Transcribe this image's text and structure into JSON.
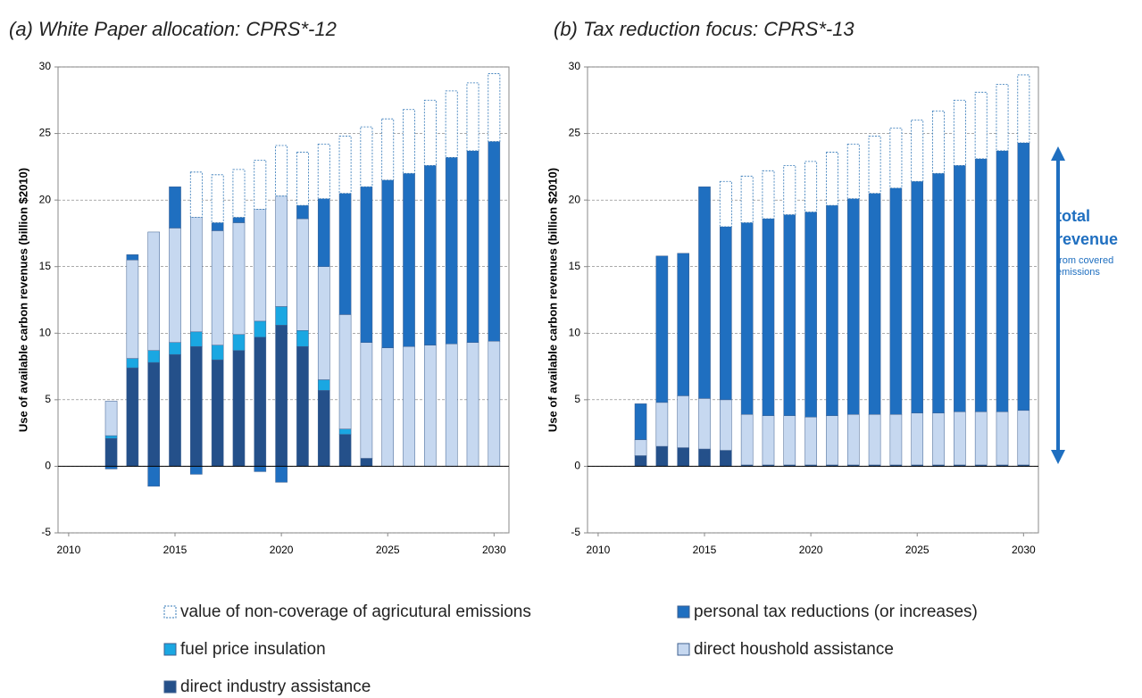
{
  "chart_data": [
    {
      "type": "bar",
      "stacked": true,
      "title": "(a)  White Paper allocation:  CPRS*-12",
      "y_label": "Use of available carbon revenues (billion $2010)",
      "x": [
        2012,
        2013,
        2014,
        2015,
        2016,
        2017,
        2018,
        2019,
        2020,
        2021,
        2022,
        2023,
        2024,
        2025,
        2026,
        2027,
        2028,
        2029,
        2030
      ],
      "xlim": [
        2009.5,
        2030.7
      ],
      "xticks": [
        2010,
        2015,
        2020,
        2025,
        2030
      ],
      "ylim": [
        -5,
        30
      ],
      "yticks": [
        -5,
        0,
        5,
        10,
        15,
        20,
        25,
        30
      ],
      "grid": true,
      "series": [
        {
          "name": "direct industry assistance",
          "color": "#24508a",
          "values": [
            2.1,
            7.4,
            7.8,
            8.4,
            9.0,
            8.0,
            8.7,
            9.7,
            10.6,
            9.0,
            5.7,
            2.4,
            0.6,
            0,
            0,
            0,
            0,
            0,
            0
          ]
        },
        {
          "name": "fuel price insulation",
          "color": "#1aa7e2",
          "values": [
            0.2,
            0.7,
            0.9,
            0.9,
            1.1,
            1.1,
            1.2,
            1.2,
            1.4,
            1.2,
            0.8,
            0.4,
            0,
            0,
            0,
            0,
            0,
            0,
            0
          ]
        },
        {
          "name": "direct houshold assistance",
          "color": "#c6d8f0",
          "values": [
            2.6,
            7.4,
            8.9,
            8.6,
            8.6,
            8.6,
            8.4,
            8.4,
            8.3,
            8.4,
            8.5,
            8.6,
            8.7,
            8.9,
            9.0,
            9.1,
            9.2,
            9.3,
            9.4
          ]
        },
        {
          "name": "personal tax reductions (or increases)",
          "color": "#1f6fc0",
          "values": [
            -0.2,
            0.4,
            -1.5,
            3.1,
            -0.6,
            0.6,
            0.4,
            -0.4,
            -1.2,
            1.0,
            5.1,
            9.1,
            11.7,
            12.6,
            13.0,
            13.5,
            14.0,
            14.4,
            15.0
          ]
        },
        {
          "name": "value of non-coverage of agricutural emissions",
          "color": "#2e75b6",
          "values": [
            0,
            0,
            0,
            0,
            3.4,
            3.6,
            3.6,
            3.7,
            3.8,
            4.0,
            4.1,
            4.3,
            4.5,
            4.6,
            4.8,
            4.9,
            5.0,
            5.1,
            5.1
          ]
        }
      ]
    },
    {
      "type": "bar",
      "stacked": true,
      "title": "(b)   Tax reduction focus:  CPRS*-13",
      "y_label": "Use of available carbon revenues (billion $2010)",
      "x": [
        2012,
        2013,
        2014,
        2015,
        2016,
        2017,
        2018,
        2019,
        2020,
        2021,
        2022,
        2023,
        2024,
        2025,
        2026,
        2027,
        2028,
        2029,
        2030
      ],
      "xlim": [
        2009.5,
        2030.7
      ],
      "xticks": [
        2010,
        2015,
        2020,
        2025,
        2030
      ],
      "ylim": [
        -5,
        30
      ],
      "yticks": [
        -5,
        0,
        5,
        10,
        15,
        20,
        25,
        30
      ],
      "grid": true,
      "annotations": [
        [
          "total",
          "revenue"
        ],
        [
          "from covered",
          "emissions"
        ]
      ],
      "series": [
        {
          "name": "direct industry assistance",
          "color": "#24508a",
          "values": [
            0.8,
            1.5,
            1.4,
            1.3,
            1.2,
            0.1,
            0.1,
            0.1,
            0.1,
            0.1,
            0.1,
            0.1,
            0.1,
            0.1,
            0.1,
            0.1,
            0.1,
            0.1,
            0.1
          ]
        },
        {
          "name": "fuel price insulation",
          "color": "#1aa7e2",
          "values": [
            0,
            0,
            0,
            0,
            0,
            0,
            0,
            0,
            0,
            0,
            0,
            0,
            0,
            0,
            0,
            0,
            0,
            0,
            0
          ]
        },
        {
          "name": "direct houshold assistance",
          "color": "#c6d8f0",
          "values": [
            1.2,
            3.3,
            3.9,
            3.8,
            3.8,
            3.8,
            3.7,
            3.7,
            3.6,
            3.7,
            3.8,
            3.8,
            3.8,
            3.9,
            3.9,
            4.0,
            4.0,
            4.0,
            4.1
          ]
        },
        {
          "name": "personal tax reductions (or increases)",
          "color": "#1f6fc0",
          "values": [
            2.7,
            11.0,
            10.7,
            15.9,
            13.0,
            14.4,
            14.8,
            15.1,
            15.4,
            15.8,
            16.2,
            16.6,
            17.0,
            17.4,
            18.0,
            18.5,
            19.0,
            19.6,
            20.1
          ]
        },
        {
          "name": "value of non-coverage of agricutural emissions",
          "color": "#2e75b6",
          "values": [
            0,
            0,
            0,
            0,
            3.4,
            3.5,
            3.6,
            3.7,
            3.8,
            4.0,
            4.1,
            4.3,
            4.5,
            4.6,
            4.7,
            4.9,
            5.0,
            5.0,
            5.1
          ]
        }
      ]
    }
  ]
}
